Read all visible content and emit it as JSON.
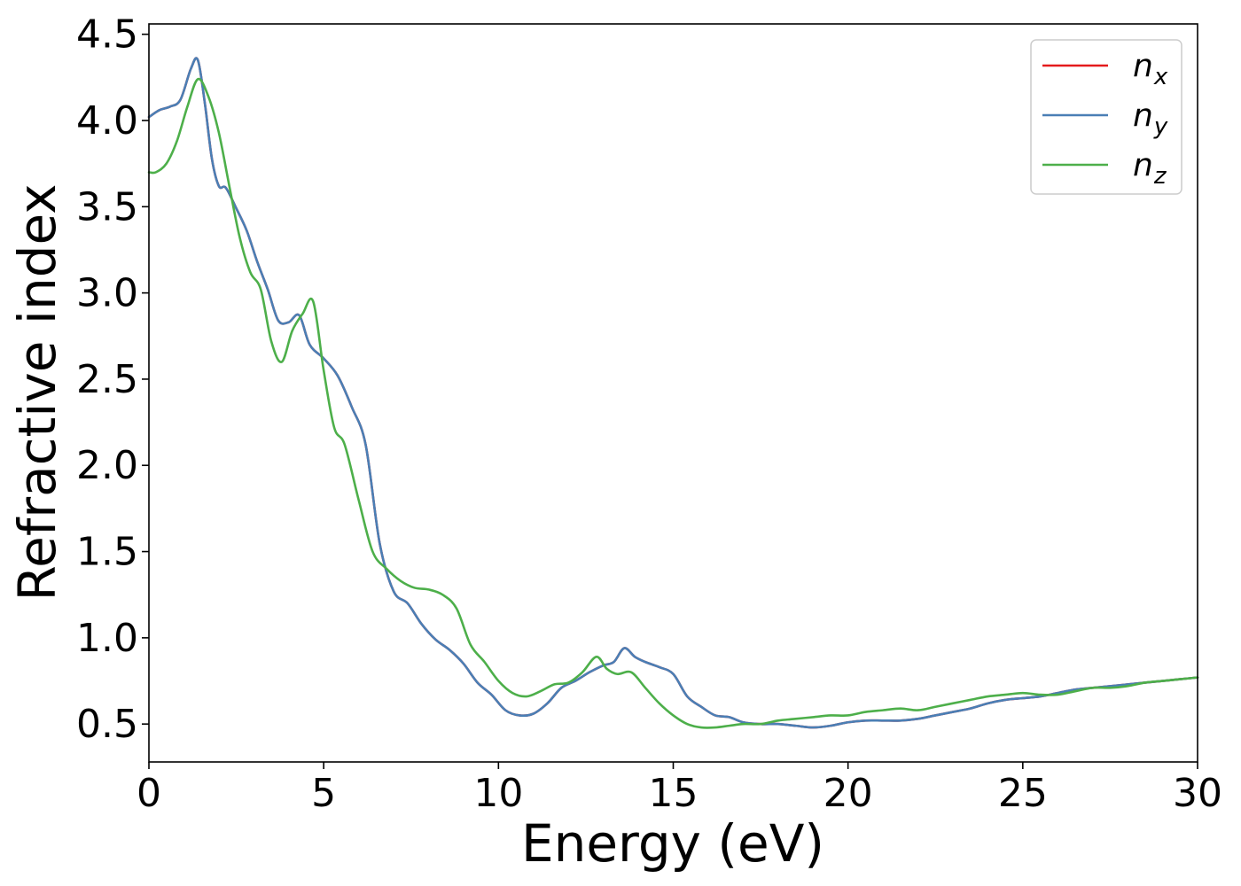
{
  "chart_data": {
    "type": "line",
    "title": "",
    "xlabel": "Energy (eV)",
    "ylabel": "Refractive index",
    "xlim": [
      0,
      30
    ],
    "ylim": [
      0.28,
      4.56
    ],
    "xticks": [
      0,
      5,
      10,
      15,
      20,
      25,
      30
    ],
    "xtick_labels": [
      "0",
      "5",
      "10",
      "15",
      "20",
      "25",
      "30"
    ],
    "yticks": [
      0.5,
      1.0,
      1.5,
      2.0,
      2.5,
      3.0,
      3.5,
      4.0,
      4.5
    ],
    "ytick_labels": [
      "0.5",
      "1.0",
      "1.5",
      "2.0",
      "2.5",
      "3.0",
      "3.5",
      "4.0",
      "4.5"
    ],
    "grid": false,
    "legend_position": "top-right",
    "series": [
      {
        "name": "n_x",
        "label_main": "n",
        "label_sub": "x",
        "color": "#e41a1c",
        "x": [
          0,
          0.3,
          0.6,
          0.9,
          1.2,
          1.4,
          1.6,
          1.8,
          2.0,
          2.2,
          2.5,
          2.8,
          3.1,
          3.4,
          3.7,
          4.0,
          4.3,
          4.6,
          5.0,
          5.4,
          5.8,
          6.2,
          6.6,
          7.0,
          7.4,
          7.8,
          8.2,
          8.6,
          9.0,
          9.4,
          9.8,
          10.2,
          10.6,
          11.0,
          11.4,
          11.8,
          12.2,
          12.6,
          13.0,
          13.3,
          13.6,
          13.9,
          14.2,
          14.6,
          15.0,
          15.4,
          15.8,
          16.2,
          16.6,
          17.0,
          17.5,
          18.0,
          18.5,
          19.0,
          19.5,
          20.0,
          20.5,
          21.0,
          21.5,
          22.0,
          22.5,
          23.0,
          23.5,
          24.0,
          24.5,
          25.0,
          25.5,
          26.0,
          26.5,
          27.0,
          27.5,
          28.0,
          28.5,
          29.0,
          29.5,
          30.0
        ],
        "y": [
          4.02,
          4.06,
          4.08,
          4.12,
          4.3,
          4.35,
          4.1,
          3.78,
          3.62,
          3.61,
          3.49,
          3.36,
          3.18,
          3.02,
          2.84,
          2.83,
          2.87,
          2.7,
          2.62,
          2.52,
          2.34,
          2.12,
          1.55,
          1.27,
          1.2,
          1.08,
          0.99,
          0.93,
          0.85,
          0.74,
          0.67,
          0.58,
          0.55,
          0.56,
          0.62,
          0.71,
          0.75,
          0.8,
          0.84,
          0.86,
          0.94,
          0.89,
          0.86,
          0.83,
          0.79,
          0.66,
          0.6,
          0.55,
          0.54,
          0.51,
          0.5,
          0.5,
          0.49,
          0.48,
          0.49,
          0.51,
          0.52,
          0.52,
          0.52,
          0.53,
          0.55,
          0.57,
          0.59,
          0.62,
          0.64,
          0.65,
          0.66,
          0.68,
          0.7,
          0.71,
          0.72,
          0.73,
          0.74,
          0.75,
          0.76,
          0.77
        ]
      },
      {
        "name": "n_y",
        "label_main": "n",
        "label_sub": "y",
        "color": "#4a7fb5",
        "x": [
          0,
          0.3,
          0.6,
          0.9,
          1.2,
          1.4,
          1.6,
          1.8,
          2.0,
          2.2,
          2.5,
          2.8,
          3.1,
          3.4,
          3.7,
          4.0,
          4.3,
          4.6,
          5.0,
          5.4,
          5.8,
          6.2,
          6.6,
          7.0,
          7.4,
          7.8,
          8.2,
          8.6,
          9.0,
          9.4,
          9.8,
          10.2,
          10.6,
          11.0,
          11.4,
          11.8,
          12.2,
          12.6,
          13.0,
          13.3,
          13.6,
          13.9,
          14.2,
          14.6,
          15.0,
          15.4,
          15.8,
          16.2,
          16.6,
          17.0,
          17.5,
          18.0,
          18.5,
          19.0,
          19.5,
          20.0,
          20.5,
          21.0,
          21.5,
          22.0,
          22.5,
          23.0,
          23.5,
          24.0,
          24.5,
          25.0,
          25.5,
          26.0,
          26.5,
          27.0,
          27.5,
          28.0,
          28.5,
          29.0,
          29.5,
          30.0
        ],
        "y": [
          4.02,
          4.06,
          4.08,
          4.12,
          4.3,
          4.35,
          4.1,
          3.78,
          3.62,
          3.61,
          3.49,
          3.36,
          3.18,
          3.02,
          2.84,
          2.83,
          2.87,
          2.7,
          2.62,
          2.52,
          2.34,
          2.12,
          1.55,
          1.27,
          1.2,
          1.08,
          0.99,
          0.93,
          0.85,
          0.74,
          0.67,
          0.58,
          0.55,
          0.56,
          0.62,
          0.71,
          0.75,
          0.8,
          0.84,
          0.86,
          0.94,
          0.89,
          0.86,
          0.83,
          0.79,
          0.66,
          0.6,
          0.55,
          0.54,
          0.51,
          0.5,
          0.5,
          0.49,
          0.48,
          0.49,
          0.51,
          0.52,
          0.52,
          0.52,
          0.53,
          0.55,
          0.57,
          0.59,
          0.62,
          0.64,
          0.65,
          0.66,
          0.68,
          0.7,
          0.71,
          0.72,
          0.73,
          0.74,
          0.75,
          0.76,
          0.77
        ]
      },
      {
        "name": "n_z",
        "label_main": "n",
        "label_sub": "z",
        "color": "#4daf4a",
        "x": [
          0,
          0.2,
          0.5,
          0.8,
          1.1,
          1.4,
          1.7,
          2.0,
          2.3,
          2.6,
          2.9,
          3.2,
          3.5,
          3.8,
          4.1,
          4.4,
          4.7,
          5.0,
          5.3,
          5.6,
          6.0,
          6.4,
          6.8,
          7.2,
          7.6,
          8.0,
          8.4,
          8.8,
          9.2,
          9.6,
          10.0,
          10.4,
          10.8,
          11.2,
          11.6,
          12.0,
          12.4,
          12.8,
          13.1,
          13.4,
          13.8,
          14.2,
          14.6,
          15.0,
          15.4,
          15.8,
          16.2,
          16.6,
          17.0,
          17.5,
          18.0,
          18.5,
          19.0,
          19.5,
          20.0,
          20.5,
          21.0,
          21.5,
          22.0,
          22.5,
          23.0,
          23.5,
          24.0,
          24.5,
          25.0,
          25.5,
          26.0,
          26.5,
          27.0,
          27.5,
          28.0,
          28.5,
          29.0,
          29.5,
          30.0
        ],
        "y": [
          3.7,
          3.7,
          3.75,
          3.88,
          4.08,
          4.24,
          4.14,
          3.93,
          3.62,
          3.32,
          3.12,
          3.02,
          2.72,
          2.6,
          2.78,
          2.88,
          2.95,
          2.55,
          2.22,
          2.12,
          1.8,
          1.5,
          1.4,
          1.33,
          1.29,
          1.28,
          1.25,
          1.17,
          0.96,
          0.86,
          0.75,
          0.68,
          0.66,
          0.69,
          0.73,
          0.74,
          0.8,
          0.89,
          0.82,
          0.79,
          0.8,
          0.71,
          0.62,
          0.55,
          0.5,
          0.48,
          0.48,
          0.49,
          0.5,
          0.5,
          0.52,
          0.53,
          0.54,
          0.55,
          0.55,
          0.57,
          0.58,
          0.59,
          0.58,
          0.6,
          0.62,
          0.64,
          0.66,
          0.67,
          0.68,
          0.67,
          0.67,
          0.69,
          0.71,
          0.71,
          0.72,
          0.74,
          0.75,
          0.76,
          0.77
        ]
      }
    ]
  }
}
